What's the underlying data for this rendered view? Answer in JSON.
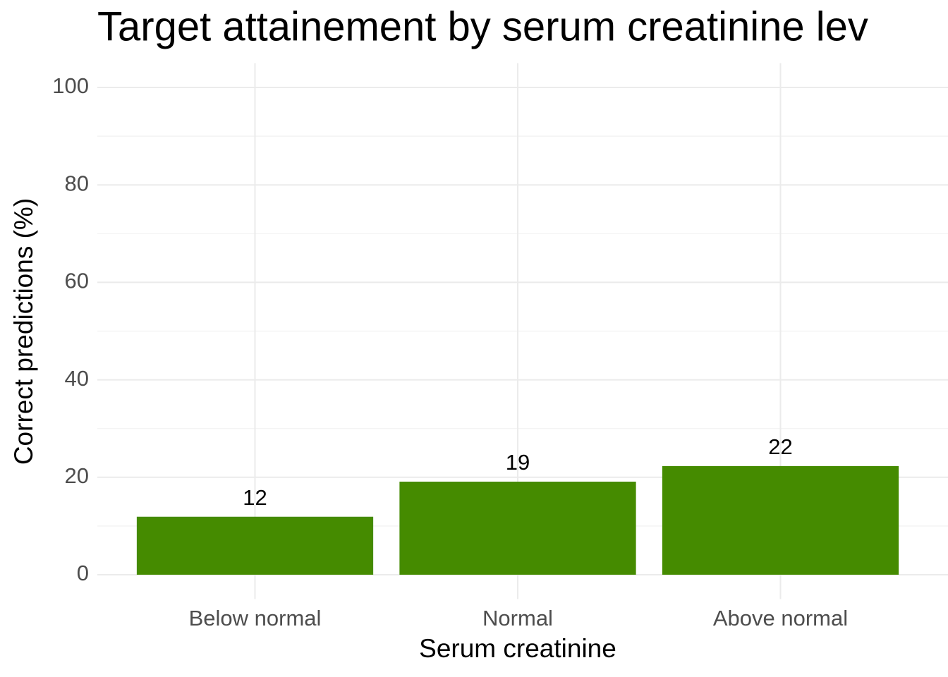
{
  "chart_data": {
    "type": "bar",
    "title": "Target attainement by serum creatinine lev",
    "x_label": "Serum creatinine",
    "y_label": "Correct predictions (%)",
    "categories": [
      "Below normal",
      "Normal",
      "Above normal"
    ],
    "values": [
      11.9,
      19.1,
      22.3
    ],
    "value_labels": [
      "12",
      "19",
      "22"
    ],
    "color": "#458b00",
    "ylim": [
      -5,
      105
    ],
    "yticks": [
      0,
      20,
      40,
      60,
      80,
      100
    ],
    "minor_yticks": [
      10,
      30,
      50,
      70,
      90
    ],
    "grid": true
  }
}
